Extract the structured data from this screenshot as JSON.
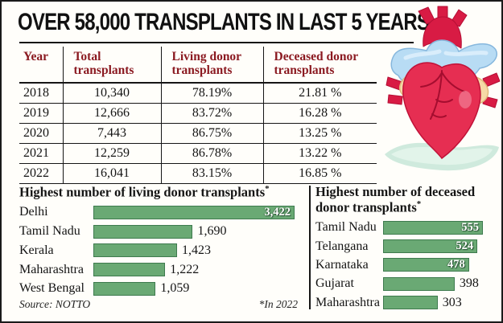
{
  "header": {
    "title": "OVER 58,000 TRANSPLANTS IN LAST 5 YEARS"
  },
  "chart_data": [
    {
      "type": "table",
      "columns": [
        "Year",
        "Total transplants",
        "Living donor transplants",
        "Deceased donor transplants"
      ],
      "rows": [
        [
          "2018",
          "10,340",
          "78.19%",
          "21.81 %"
        ],
        [
          "2019",
          "12,666",
          "83.72%",
          "16.28 %"
        ],
        [
          "2020",
          "7,443",
          "86.75%",
          "13.25 %"
        ],
        [
          "2021",
          "12,259",
          "86.78%",
          "13.22 %"
        ],
        [
          "2022",
          "16,041",
          "83.15%",
          "16.85 %"
        ]
      ]
    },
    {
      "type": "bar",
      "orientation": "horizontal",
      "title": "Highest number of living donor transplants",
      "title_mark": "*",
      "categories": [
        "Delhi",
        "Tamil Nadu",
        "Kerala",
        "Maharashtra",
        "West Bengal"
      ],
      "values": [
        3422,
        1690,
        1423,
        1222,
        1059
      ],
      "value_labels": [
        "3,422",
        "1,690",
        "1,423",
        "1,222",
        "1,059"
      ],
      "value_label_inside": [
        true,
        false,
        false,
        false,
        false
      ],
      "xlim": [
        0,
        3422
      ],
      "bar_color": "#6aa974",
      "legend": "none",
      "grid": "off"
    },
    {
      "type": "bar",
      "orientation": "horizontal",
      "title": "Highest number of deceased donor transplants",
      "title_mark": "*",
      "categories": [
        "Tamil Nadu",
        "Telangana",
        "Karnataka",
        "Gujarat",
        "Maharashtra"
      ],
      "values": [
        555,
        524,
        478,
        398,
        303
      ],
      "value_labels": [
        "555",
        "524",
        "478",
        "398",
        "303"
      ],
      "value_label_inside": [
        true,
        true,
        true,
        false,
        false
      ],
      "xlim": [
        0,
        555
      ],
      "bar_color": "#6aa974",
      "legend": "none",
      "grid": "off"
    }
  ],
  "footer": {
    "source": "Source: NOTTO",
    "footnote": "*In 2022"
  },
  "colors": {
    "header_maroon": "#8b1a21",
    "bar_green": "#6aa974",
    "bar_border": "#3e7a4e",
    "heart_red": "#e62e52",
    "vessel_blue": "#b8dcf4",
    "auricle_cream": "#f6d9a6",
    "hand_mint": "#cfeadd"
  },
  "icons": {
    "heart_illustration": "anatomical-heart-held-on-palm"
  }
}
